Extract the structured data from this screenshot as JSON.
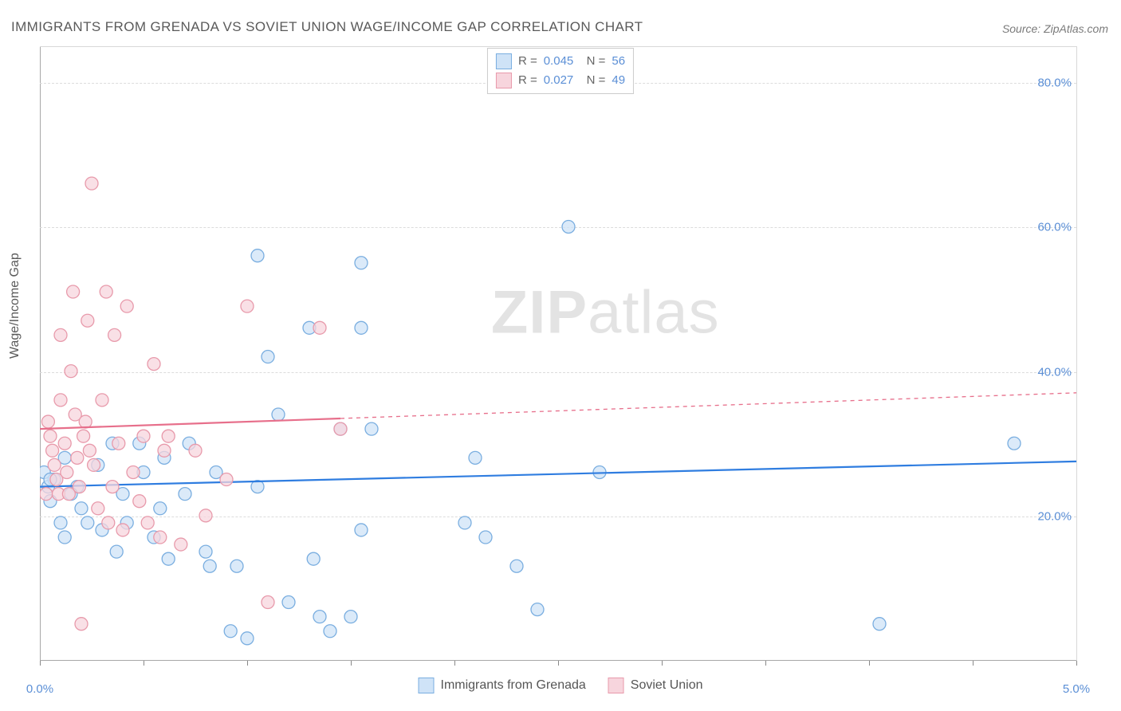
{
  "title": "IMMIGRANTS FROM GRENADA VS SOVIET UNION WAGE/INCOME GAP CORRELATION CHART",
  "source": "Source: ZipAtlas.com",
  "ylabel": "Wage/Income Gap",
  "watermark_zip": "ZIP",
  "watermark_atlas": "atlas",
  "chart": {
    "type": "scatter",
    "xlim": [
      0.0,
      5.0
    ],
    "ylim": [
      0.0,
      85.0
    ],
    "ytick_labels": [
      "20.0%",
      "40.0%",
      "60.0%",
      "80.0%"
    ],
    "ytick_values": [
      20,
      40,
      60,
      80
    ],
    "xtick_min_label": "0.0%",
    "xtick_max_label": "5.0%",
    "xtick_values": [
      0,
      0.5,
      1.0,
      1.5,
      2.0,
      2.5,
      3.0,
      3.5,
      4.0,
      4.5,
      5.0
    ],
    "grid_color": "#dcdcdc",
    "background_color": "#ffffff",
    "axis_label_color": "#5b8fd6",
    "marker_radius": 8,
    "series": [
      {
        "name": "Immigrants from Grenada",
        "fill": "#cfe3f7",
        "stroke": "#7aaee0",
        "line_color": "#2f7de0",
        "line_width": 2.2,
        "R": "0.045",
        "N": "56",
        "trend": {
          "y_at_x0": 24.0,
          "y_at_x5": 27.5,
          "dash_from_x": 5.0
        },
        "points": [
          [
            0.02,
            26
          ],
          [
            0.04,
            24
          ],
          [
            0.05,
            22
          ],
          [
            0.07,
            25
          ],
          [
            0.1,
            19
          ],
          [
            0.12,
            28
          ],
          [
            0.12,
            17
          ],
          [
            0.18,
            24
          ],
          [
            0.2,
            21
          ],
          [
            0.23,
            19
          ],
          [
            0.28,
            27
          ],
          [
            0.3,
            18
          ],
          [
            0.35,
            30
          ],
          [
            0.37,
            15
          ],
          [
            0.4,
            23
          ],
          [
            0.42,
            19
          ],
          [
            0.48,
            30
          ],
          [
            0.5,
            26
          ],
          [
            0.55,
            17
          ],
          [
            0.58,
            21
          ],
          [
            0.6,
            28
          ],
          [
            0.62,
            14
          ],
          [
            0.7,
            23
          ],
          [
            0.72,
            30
          ],
          [
            0.8,
            15
          ],
          [
            0.82,
            13
          ],
          [
            0.85,
            26
          ],
          [
            0.92,
            4
          ],
          [
            0.95,
            13
          ],
          [
            1.0,
            3
          ],
          [
            1.05,
            56
          ],
          [
            1.05,
            24
          ],
          [
            1.1,
            42
          ],
          [
            1.15,
            34
          ],
          [
            1.2,
            8
          ],
          [
            1.3,
            46
          ],
          [
            1.32,
            14
          ],
          [
            1.35,
            6
          ],
          [
            1.4,
            4
          ],
          [
            1.45,
            32
          ],
          [
            1.5,
            6
          ],
          [
            1.55,
            55
          ],
          [
            1.55,
            46
          ],
          [
            1.55,
            18
          ],
          [
            1.6,
            32
          ],
          [
            2.05,
            19
          ],
          [
            2.1,
            28
          ],
          [
            2.15,
            17
          ],
          [
            2.3,
            13
          ],
          [
            2.4,
            7
          ],
          [
            2.55,
            60
          ],
          [
            2.7,
            26
          ],
          [
            4.05,
            5
          ],
          [
            4.7,
            30
          ],
          [
            0.05,
            25
          ],
          [
            0.15,
            23
          ]
        ]
      },
      {
        "name": "Soviet Union",
        "fill": "#f7d5dd",
        "stroke": "#e89aab",
        "line_color": "#e76f8b",
        "line_width": 2.2,
        "R": "0.027",
        "N": "49",
        "trend": {
          "y_at_x0": 32.0,
          "y_at_x5": 37.0,
          "dash_from_x": 1.45
        },
        "points": [
          [
            0.03,
            23
          ],
          [
            0.04,
            33
          ],
          [
            0.05,
            31
          ],
          [
            0.06,
            29
          ],
          [
            0.07,
            27
          ],
          [
            0.08,
            25
          ],
          [
            0.09,
            23
          ],
          [
            0.1,
            45
          ],
          [
            0.1,
            36
          ],
          [
            0.12,
            30
          ],
          [
            0.13,
            26
          ],
          [
            0.14,
            23
          ],
          [
            0.15,
            40
          ],
          [
            0.16,
            51
          ],
          [
            0.17,
            34
          ],
          [
            0.18,
            28
          ],
          [
            0.19,
            24
          ],
          [
            0.2,
            5
          ],
          [
            0.21,
            31
          ],
          [
            0.22,
            33
          ],
          [
            0.23,
            47
          ],
          [
            0.24,
            29
          ],
          [
            0.25,
            66
          ],
          [
            0.26,
            27
          ],
          [
            0.28,
            21
          ],
          [
            0.3,
            36
          ],
          [
            0.32,
            51
          ],
          [
            0.33,
            19
          ],
          [
            0.35,
            24
          ],
          [
            0.36,
            45
          ],
          [
            0.38,
            30
          ],
          [
            0.4,
            18
          ],
          [
            0.42,
            49
          ],
          [
            0.45,
            26
          ],
          [
            0.48,
            22
          ],
          [
            0.5,
            31
          ],
          [
            0.52,
            19
          ],
          [
            0.55,
            41
          ],
          [
            0.58,
            17
          ],
          [
            0.6,
            29
          ],
          [
            0.62,
            31
          ],
          [
            0.68,
            16
          ],
          [
            0.75,
            29
          ],
          [
            0.8,
            20
          ],
          [
            0.9,
            25
          ],
          [
            1.0,
            49
          ],
          [
            1.1,
            8
          ],
          [
            1.35,
            46
          ],
          [
            1.45,
            32
          ]
        ]
      }
    ]
  },
  "legend_bottom": {
    "items": [
      {
        "label": "Immigrants from Grenada",
        "fill": "#cfe3f7",
        "stroke": "#7aaee0"
      },
      {
        "label": "Soviet Union",
        "fill": "#f7d5dd",
        "stroke": "#e89aab"
      }
    ]
  }
}
